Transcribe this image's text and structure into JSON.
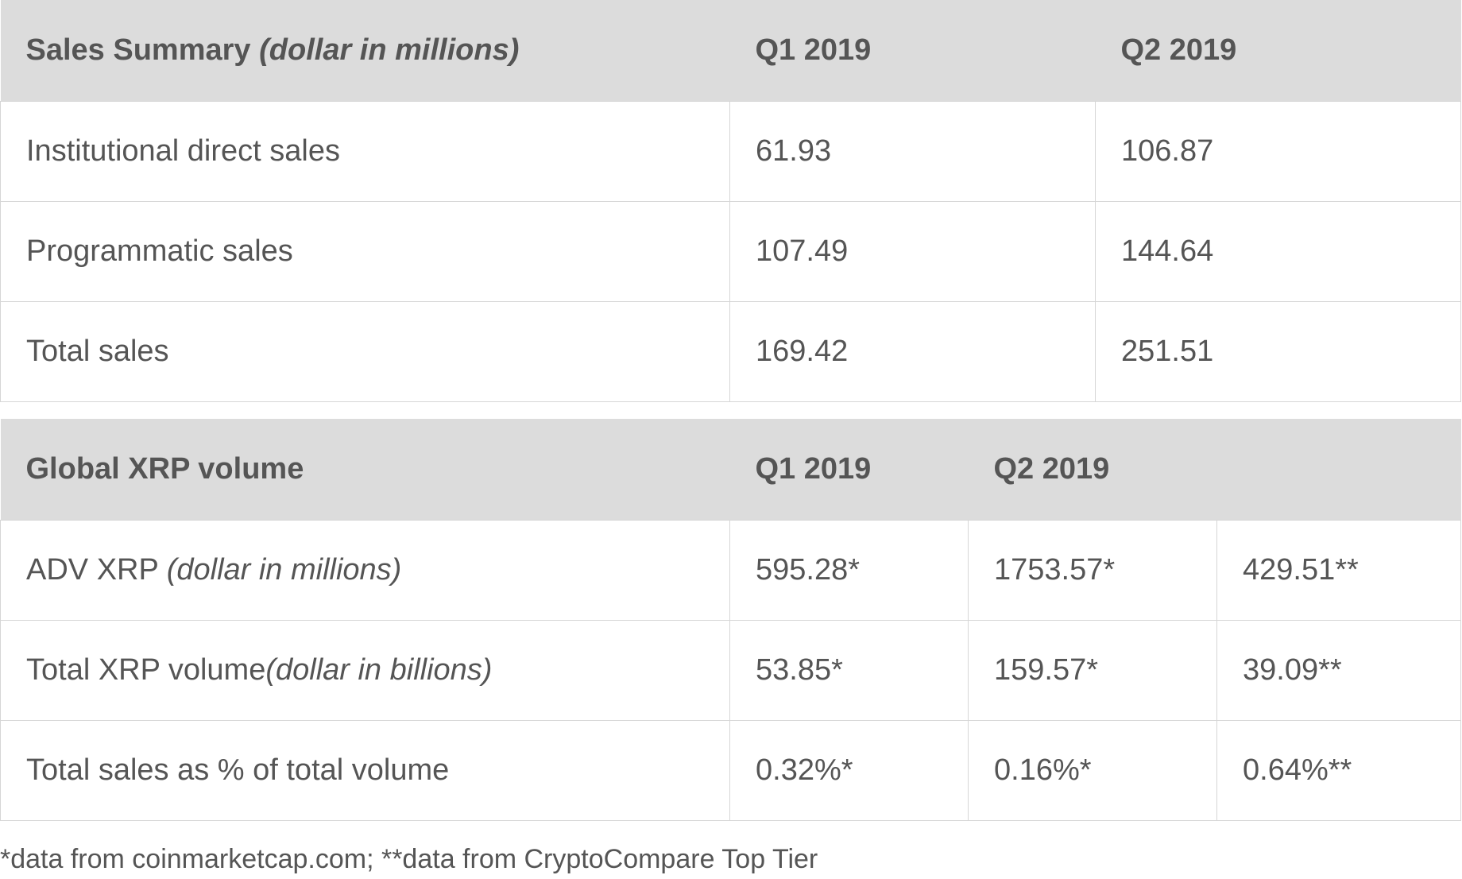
{
  "sales_summary": {
    "header": {
      "title": "Sales Summary",
      "title_note": "(dollar in millions)",
      "col_q1": "Q1 2019",
      "col_q2": "Q2 2019"
    },
    "rows": [
      {
        "label": "Institutional direct sales",
        "q1": "61.93",
        "q2": "106.87"
      },
      {
        "label": "Programmatic sales",
        "q1": "107.49",
        "q2": "144.64"
      },
      {
        "label": "Total sales",
        "q1": "169.42",
        "q2": "251.51"
      }
    ]
  },
  "xrp_volume": {
    "header": {
      "title": "Global XRP volume",
      "col_q1": "Q1 2019",
      "col_q2": "Q2 2019"
    },
    "rows": [
      {
        "label": "ADV XRP ",
        "label_note": "(dollar in millions)",
        "q1": "595.28*",
        "q2a": "1753.57*",
        "q2b": "429.51**"
      },
      {
        "label": "Total XRP volume",
        "label_note": "(dollar in billions)",
        "q1": "53.85*",
        "q2a": "159.57*",
        "q2b": "39.09**"
      },
      {
        "label": "Total sales as % of total volume",
        "label_note": "",
        "q1": "0.32%*",
        "q2a": "0.16%*",
        "q2b": "0.64%**"
      }
    ]
  },
  "footnote": "*data from coinmarketcap.com; **data from CryptoCompare Top Tier",
  "colors": {
    "header_bg": "#dcdcdc",
    "text": "#555555",
    "border": "#d6d6d6"
  }
}
